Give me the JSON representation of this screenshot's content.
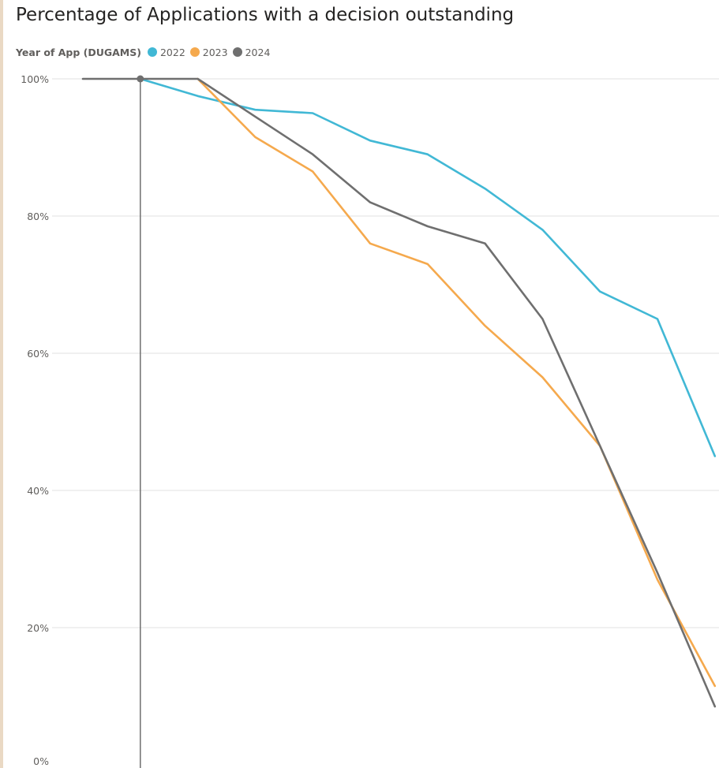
{
  "chart_data": {
    "type": "line",
    "title": "Percentage of Applications with a decision outstanding",
    "legend_title": "Year of App (DUGAMS)",
    "legend_position": "top-left",
    "xlabel": "",
    "ylabel": "",
    "y_ticks": [
      "0%",
      "20%",
      "40%",
      "60%",
      "80%",
      "100%"
    ],
    "y_tick_values": [
      0,
      20,
      40,
      60,
      80,
      100
    ],
    "ylim": [
      0,
      100
    ],
    "grid": true,
    "x": [
      0,
      1,
      2,
      3,
      4,
      5,
      6,
      7,
      8,
      9,
      10,
      11,
      12
    ],
    "xlim": [
      0,
      12
    ],
    "marker_x": 1,
    "series": [
      {
        "name": "2022",
        "color": "#41b8d5",
        "values": [
          null,
          100,
          97.5,
          95.5,
          95,
          91,
          89,
          84,
          78,
          69,
          65,
          45,
          null
        ]
      },
      {
        "name": "2023",
        "color": "#f5a94d",
        "values": [
          null,
          null,
          100,
          91.5,
          86.5,
          76,
          73,
          64,
          56.5,
          46.5,
          27,
          11.5,
          null
        ]
      },
      {
        "name": "2024",
        "color": "#6f6f6f",
        "values": [
          100,
          100,
          100,
          94.5,
          89,
          82,
          78.5,
          76,
          65,
          46.5,
          28,
          8.5,
          null
        ]
      }
    ]
  }
}
